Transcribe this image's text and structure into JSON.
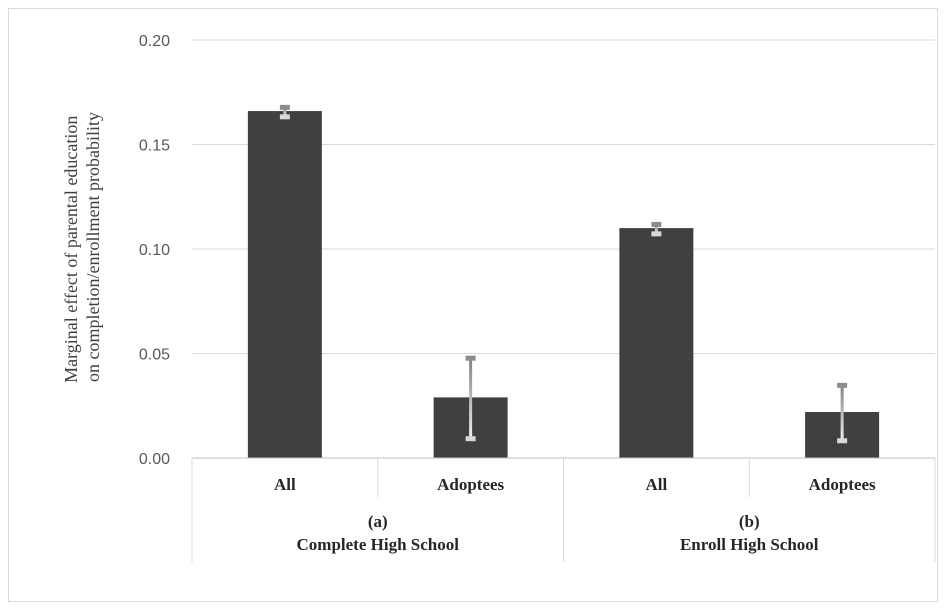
{
  "chart_data": {
    "type": "bar",
    "ylabel": [
      "Marginal effect of parental education",
      "on completion/enrollment probability"
    ],
    "ylim": [
      0,
      0.2
    ],
    "yticks": [
      "0.00",
      "0.05",
      "0.10",
      "0.15",
      "0.20"
    ],
    "ytick_values": [
      0,
      0.05,
      0.1,
      0.15,
      0.2
    ],
    "grid": true,
    "groups": [
      {
        "letter": "(a)",
        "title": "Complete High School"
      },
      {
        "letter": "(b)",
        "title": "Enroll High School"
      }
    ],
    "bars": [
      {
        "group": 0,
        "label": "All",
        "value": 0.166,
        "err_low": 0.163,
        "err_high": 0.168
      },
      {
        "group": 0,
        "label": "Adoptees",
        "value": 0.029,
        "err_low": 0.009,
        "err_high": 0.048
      },
      {
        "group": 1,
        "label": "All",
        "value": 0.11,
        "err_low": 0.107,
        "err_high": 0.112
      },
      {
        "group": 1,
        "label": "Adoptees",
        "value": 0.022,
        "err_low": 0.008,
        "err_high": 0.035
      }
    ],
    "bar_color": "#404040"
  }
}
